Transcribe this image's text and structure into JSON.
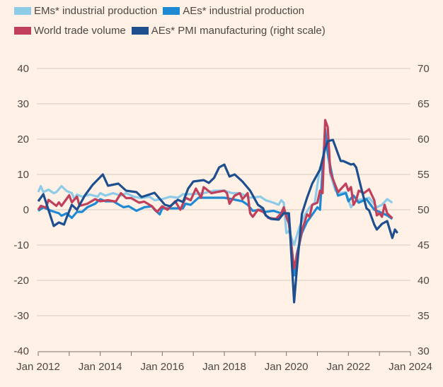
{
  "chart_data": {
    "type": "line",
    "title": "",
    "xlabel": "",
    "ylabel": "",
    "x_type": "date",
    "xlim": [
      "2012-01",
      "2024-01"
    ],
    "x_ticks": [
      "Jan 2012",
      "Jan 2014",
      "Jan 2016",
      "Jan 2018",
      "Jan 2020",
      "Jan 2022",
      "Jan 2024"
    ],
    "ylim_left": [
      -40,
      40
    ],
    "y_ticks_left": [
      40,
      30,
      20,
      10,
      0,
      -10,
      -20,
      -30,
      -40
    ],
    "ylim_right": [
      30,
      70
    ],
    "y_ticks_right": [
      70,
      65,
      60,
      55,
      50,
      45,
      40,
      35,
      30
    ],
    "grid": true,
    "legend_position": "top",
    "series": [
      {
        "name": "EMs* industrial production",
        "axis": "left",
        "color": "#8dcbe8",
        "points": [
          [
            "2012-01",
            5.0
          ],
          [
            "2012-02",
            6.7
          ],
          [
            "2012-03",
            5
          ],
          [
            "2012-05",
            5.7
          ],
          [
            "2012-07",
            4.7
          ],
          [
            "2012-08",
            5
          ],
          [
            "2012-10",
            6.7
          ],
          [
            "2012-12",
            5.3
          ],
          [
            "2013-02",
            4.7
          ],
          [
            "2013-03",
            3.0
          ],
          [
            "2013-04",
            4.3
          ],
          [
            "2013-06",
            3.7
          ],
          [
            "2013-09",
            4.3
          ],
          [
            "2013-12",
            3.7
          ],
          [
            "2014-01",
            4.7
          ],
          [
            "2014-03",
            4
          ],
          [
            "2014-06",
            4.7
          ],
          [
            "2014-09",
            4
          ],
          [
            "2014-11",
            4.7
          ],
          [
            "2015-02",
            3.7
          ],
          [
            "2015-05",
            3.3
          ],
          [
            "2015-08",
            3.7
          ],
          [
            "2015-10",
            2.7
          ],
          [
            "2016-01",
            3.0
          ],
          [
            "2016-04",
            3.7
          ],
          [
            "2016-07",
            3.4
          ],
          [
            "2016-09",
            4.4
          ],
          [
            "2016-12",
            4.4
          ],
          [
            "2017-05",
            4.7
          ],
          [
            "2017-09",
            5.4
          ],
          [
            "2018-01",
            5.4
          ],
          [
            "2018-04",
            4.7
          ],
          [
            "2018-07",
            4.7
          ],
          [
            "2018-11",
            3.4
          ],
          [
            "2019-03",
            3.7
          ],
          [
            "2019-05",
            2.7
          ],
          [
            "2019-08",
            2.0
          ],
          [
            "2019-10",
            1.4
          ],
          [
            "2019-11",
            2.7
          ],
          [
            "2019-12",
            2.0
          ],
          [
            "2020-01",
            -6.6
          ],
          [
            "2020-02",
            -6
          ],
          [
            "2020-04",
            -10
          ],
          [
            "2020-06",
            -5
          ],
          [
            "2020-08",
            -1.7
          ],
          [
            "2020-10",
            0.7
          ],
          [
            "2020-12",
            2
          ],
          [
            "2021-02",
            12
          ],
          [
            "2021-03",
            10.7
          ],
          [
            "2021-04",
            19.4
          ],
          [
            "2021-05",
            16
          ],
          [
            "2021-06",
            10
          ],
          [
            "2021-08",
            5.4
          ],
          [
            "2021-10",
            4.7
          ],
          [
            "2021-12",
            5
          ],
          [
            "2022-02",
            0.7
          ],
          [
            "2022-04",
            2.7
          ],
          [
            "2022-07",
            3
          ],
          [
            "2022-09",
            3.4
          ],
          [
            "2022-12",
            0.7
          ],
          [
            "2023-02",
            1.4
          ],
          [
            "2023-04",
            3
          ],
          [
            "2023-06",
            2
          ]
        ]
      },
      {
        "name": "AEs* industrial production",
        "axis": "left",
        "color": "#1f8ad3",
        "points": [
          [
            "2012-01",
            -0.3
          ],
          [
            "2012-03",
            0.7
          ],
          [
            "2012-06",
            -0.3
          ],
          [
            "2012-09",
            -1
          ],
          [
            "2012-10",
            -1.7
          ],
          [
            "2012-12",
            -1
          ],
          [
            "2013-02",
            -2.3
          ],
          [
            "2013-04",
            -0.6
          ],
          [
            "2013-06",
            -0.6
          ],
          [
            "2013-08",
            0.7
          ],
          [
            "2013-11",
            1.7
          ],
          [
            "2014-01",
            3
          ],
          [
            "2014-03",
            2.4
          ],
          [
            "2014-06",
            2.4
          ],
          [
            "2014-10",
            0.7
          ],
          [
            "2014-12",
            1
          ],
          [
            "2015-03",
            -0.3
          ],
          [
            "2015-06",
            0.7
          ],
          [
            "2015-09",
            1
          ],
          [
            "2015-10",
            0
          ],
          [
            "2015-12",
            -1.3
          ],
          [
            "2016-01",
            0.4
          ],
          [
            "2016-03",
            0.4
          ],
          [
            "2016-06",
            0.4
          ],
          [
            "2016-09",
            0.4
          ],
          [
            "2016-10",
            1.7
          ],
          [
            "2016-12",
            1.4
          ],
          [
            "2017-03",
            3.4
          ],
          [
            "2017-07",
            3.4
          ],
          [
            "2017-10",
            3.4
          ],
          [
            "2018-01",
            3.4
          ],
          [
            "2018-04",
            3
          ],
          [
            "2018-08",
            2.4
          ],
          [
            "2018-10",
            1.4
          ],
          [
            "2018-12",
            -0.3
          ],
          [
            "2019-03",
            0
          ],
          [
            "2019-05",
            -0.6
          ],
          [
            "2019-08",
            -0.3
          ],
          [
            "2019-11",
            -1
          ],
          [
            "2019-12",
            -0.6
          ],
          [
            "2020-02",
            -2
          ],
          [
            "2020-04",
            -18.6
          ],
          [
            "2020-05",
            -12.6
          ],
          [
            "2020-07",
            -6.6
          ],
          [
            "2020-09",
            -3.4
          ],
          [
            "2020-11",
            -1.4
          ],
          [
            "2021-01",
            0.7
          ],
          [
            "2021-02",
            0
          ],
          [
            "2021-04",
            22.8
          ],
          [
            "2021-05",
            16
          ],
          [
            "2021-07",
            8.7
          ],
          [
            "2021-09",
            4
          ],
          [
            "2021-12",
            4.7
          ],
          [
            "2022-01",
            2.4
          ],
          [
            "2022-03",
            4
          ],
          [
            "2022-05",
            2
          ],
          [
            "2022-08",
            3
          ],
          [
            "2022-11",
            0
          ],
          [
            "2023-01",
            -0.6
          ],
          [
            "2023-04",
            -1.6
          ],
          [
            "2023-06",
            -2.6
          ]
        ]
      },
      {
        "name": "World trade volume",
        "axis": "left",
        "color": "#c0405c",
        "points": [
          [
            "2012-01",
            0
          ],
          [
            "2012-02",
            1.1
          ],
          [
            "2012-04",
            0.6
          ],
          [
            "2012-05",
            2.8
          ],
          [
            "2012-08",
            1.1
          ],
          [
            "2012-09",
            2.1
          ],
          [
            "2012-10",
            1.1
          ],
          [
            "2013-01",
            4.1
          ],
          [
            "2013-02",
            2.1
          ],
          [
            "2013-04",
            3.7
          ],
          [
            "2013-05",
            1.1
          ],
          [
            "2013-08",
            1.7
          ],
          [
            "2013-11",
            3.0
          ],
          [
            "2014-01",
            2.4
          ],
          [
            "2014-04",
            2.7
          ],
          [
            "2014-07",
            2.3
          ],
          [
            "2014-09",
            4.7
          ],
          [
            "2014-11",
            3.3
          ],
          [
            "2015-01",
            3.3
          ],
          [
            "2015-04",
            2.0
          ],
          [
            "2015-06",
            2.3
          ],
          [
            "2015-09",
            1.0
          ],
          [
            "2015-11",
            -0.6
          ],
          [
            "2016-01",
            1.0
          ],
          [
            "2016-03",
            0
          ],
          [
            "2016-06",
            2.4
          ],
          [
            "2016-08",
            0
          ],
          [
            "2016-10",
            3.4
          ],
          [
            "2016-12",
            2.7
          ],
          [
            "2017-02",
            6.0
          ],
          [
            "2017-04",
            3.4
          ],
          [
            "2017-05",
            6.4
          ],
          [
            "2017-08",
            4.7
          ],
          [
            "2017-10",
            5.0
          ],
          [
            "2018-01",
            5.4
          ],
          [
            "2018-02",
            4.7
          ],
          [
            "2018-03",
            1.7
          ],
          [
            "2018-05",
            4.0
          ],
          [
            "2018-07",
            4.7
          ],
          [
            "2018-08",
            3.0
          ],
          [
            "2018-10",
            4.7
          ],
          [
            "2018-11",
            -1.0
          ],
          [
            "2018-12",
            -2.0
          ],
          [
            "2019-02",
            0
          ],
          [
            "2019-04",
            -0.6
          ],
          [
            "2019-06",
            -2.3
          ],
          [
            "2019-09",
            -2.6
          ],
          [
            "2019-11",
            -1.0
          ],
          [
            "2019-12",
            0.7
          ],
          [
            "2020-01",
            -2.0
          ],
          [
            "2020-02",
            -4.0
          ],
          [
            "2020-04",
            -16.6
          ],
          [
            "2020-06",
            -10
          ],
          [
            "2020-07",
            -6
          ],
          [
            "2020-09",
            -1.3
          ],
          [
            "2020-10",
            -2
          ],
          [
            "2020-11",
            1.4
          ],
          [
            "2021-01",
            2
          ],
          [
            "2021-02",
            5.4
          ],
          [
            "2021-03",
            4.7
          ],
          [
            "2021-04",
            25.4
          ],
          [
            "2021-05",
            23.4
          ],
          [
            "2021-06",
            10.7
          ],
          [
            "2021-07",
            8.7
          ],
          [
            "2021-09",
            5.0
          ],
          [
            "2021-12",
            7.4
          ],
          [
            "2022-01",
            5.4
          ],
          [
            "2022-02",
            6.4
          ],
          [
            "2022-03",
            1.4
          ],
          [
            "2022-04",
            2.7
          ],
          [
            "2022-05",
            5.4
          ],
          [
            "2022-07",
            4.7
          ],
          [
            "2022-09",
            5.8
          ],
          [
            "2022-11",
            2.7
          ],
          [
            "2022-12",
            -1.6
          ],
          [
            "2023-01",
            -1
          ],
          [
            "2023-02",
            -2
          ],
          [
            "2023-03",
            1.4
          ],
          [
            "2023-04",
            -1
          ],
          [
            "2023-06",
            -2.4
          ]
        ]
      },
      {
        "name": "AEs* PMI manufacturing (right scale)",
        "axis": "right",
        "color": "#1d4f8f",
        "points": [
          [
            "2012-01",
            51.2
          ],
          [
            "2012-03",
            52.2
          ],
          [
            "2012-07",
            47.7
          ],
          [
            "2012-09",
            48.2
          ],
          [
            "2012-11",
            47.9
          ],
          [
            "2012-12",
            48.9
          ],
          [
            "2013-02",
            50.7
          ],
          [
            "2013-04",
            50.0
          ],
          [
            "2013-07",
            52.0
          ],
          [
            "2013-10",
            53.5
          ],
          [
            "2014-02",
            55.0
          ],
          [
            "2014-04",
            53.4
          ],
          [
            "2014-08",
            53.7
          ],
          [
            "2014-11",
            52.7
          ],
          [
            "2015-03",
            52.5
          ],
          [
            "2015-05",
            51.8
          ],
          [
            "2015-10",
            52.4
          ],
          [
            "2016-02",
            50.7
          ],
          [
            "2016-04",
            50.5
          ],
          [
            "2016-07",
            51.4
          ],
          [
            "2016-09",
            51.1
          ],
          [
            "2016-11",
            53.0
          ],
          [
            "2017-01",
            54.0
          ],
          [
            "2017-05",
            54.2
          ],
          [
            "2017-07",
            53.8
          ],
          [
            "2017-09",
            54.5
          ],
          [
            "2017-11",
            56.0
          ],
          [
            "2018-01",
            56.4
          ],
          [
            "2018-03",
            54.7
          ],
          [
            "2018-05",
            55.0
          ],
          [
            "2018-08",
            54.0
          ],
          [
            "2018-11",
            52.7
          ],
          [
            "2019-02",
            50.7
          ],
          [
            "2019-04",
            50.2
          ],
          [
            "2019-05",
            49.2
          ],
          [
            "2019-07",
            48.7
          ],
          [
            "2019-10",
            48.6
          ],
          [
            "2019-12",
            49.5
          ],
          [
            "2020-02",
            49.5
          ],
          [
            "2020-04",
            36.9
          ],
          [
            "2020-05",
            41.4
          ],
          [
            "2020-07",
            49.4
          ],
          [
            "2020-09",
            51.7
          ],
          [
            "2020-11",
            53.7
          ],
          [
            "2021-02",
            55.7
          ],
          [
            "2021-04",
            58.7
          ],
          [
            "2021-05",
            59.7
          ],
          [
            "2021-07",
            59.9
          ],
          [
            "2021-10",
            56.9
          ],
          [
            "2021-11",
            56.9
          ],
          [
            "2022-02",
            56.4
          ],
          [
            "2022-03",
            56.5
          ],
          [
            "2022-04",
            56.0
          ],
          [
            "2022-06",
            53.0
          ],
          [
            "2022-08",
            50.2
          ],
          [
            "2022-09",
            49.9
          ],
          [
            "2022-11",
            47.9
          ],
          [
            "2022-12",
            47.2
          ],
          [
            "2023-02",
            48.0
          ],
          [
            "2023-04",
            48.4
          ],
          [
            "2023-06",
            46.0
          ],
          [
            "2023-07",
            47.2
          ],
          [
            "2023-08",
            46.7
          ]
        ]
      }
    ]
  }
}
